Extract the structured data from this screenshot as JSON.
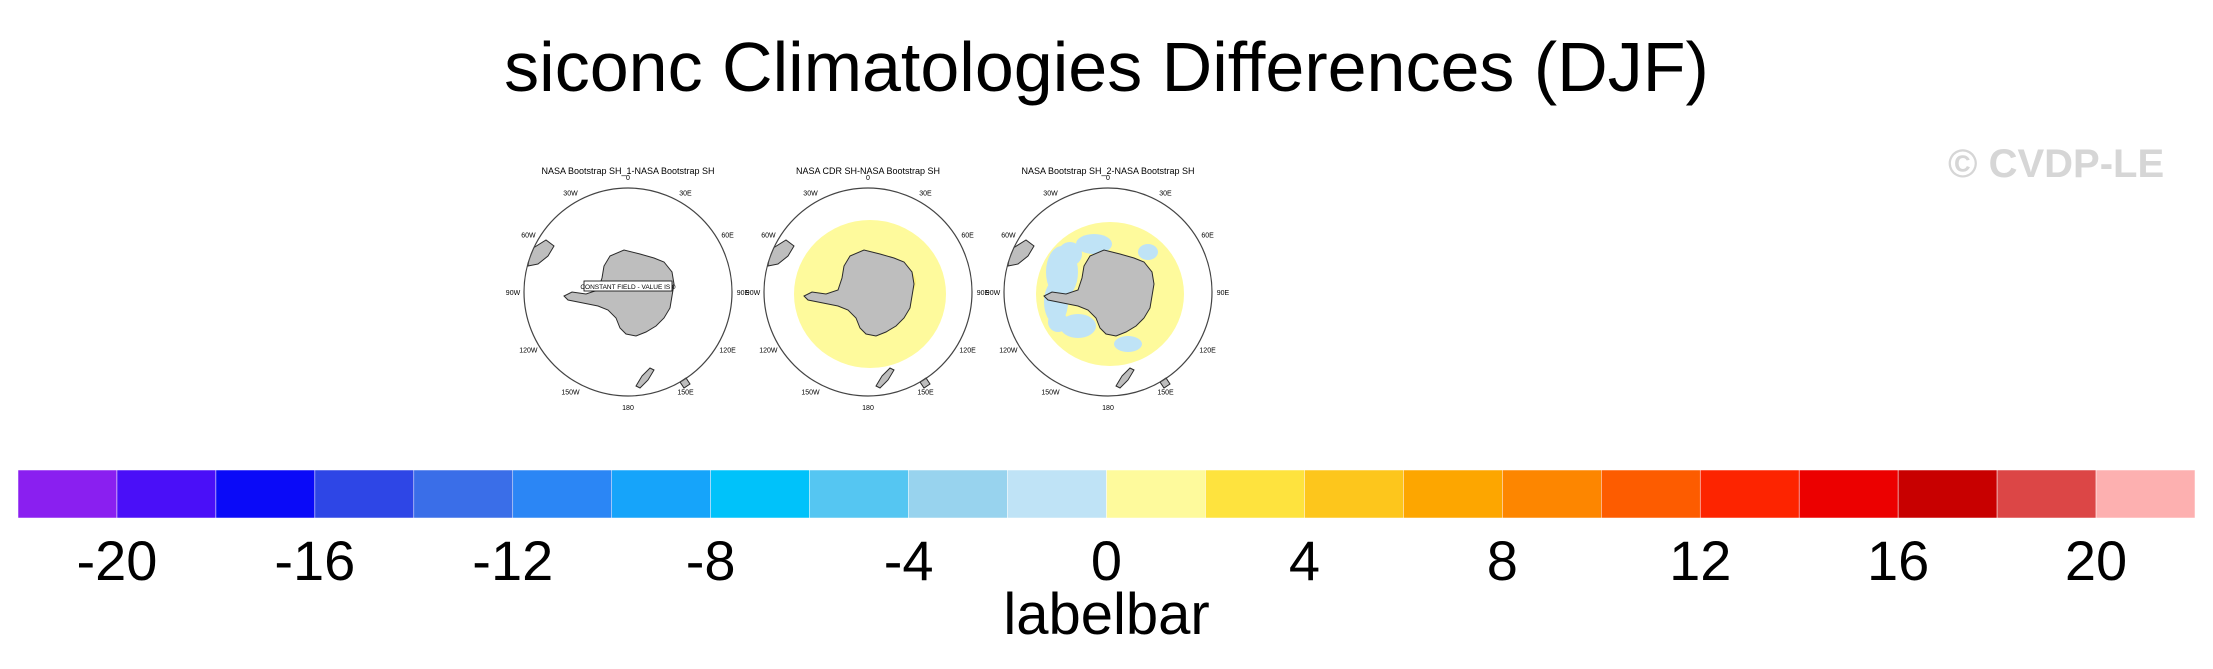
{
  "title": "siconc Climatologies Differences (DJF)",
  "watermark": "© CVDP-LE",
  "chart_data": {
    "type": "heatmap",
    "projection": "south-polar-stereographic",
    "panels": [
      {
        "title": "NASA Bootstrap SH_1-NASA Bootstrap SH",
        "annotation": "CONSTANT FIELD - VALUE IS 0",
        "field": "none",
        "lon_labels": [
          "0",
          "30E",
          "60E",
          "90E",
          "120E",
          "150E",
          "180",
          "150W",
          "120W",
          "90W",
          "60W",
          "30W"
        ]
      },
      {
        "title": "NASA CDR SH-NASA Bootstrap SH",
        "annotation": "",
        "field": "positive-ring",
        "lon_labels": [
          "0",
          "30E",
          "60E",
          "90E",
          "120E",
          "150E",
          "180",
          "150W",
          "120W",
          "90W",
          "60W",
          "30W"
        ]
      },
      {
        "title": "NASA Bootstrap SH_2-NASA Bootstrap SH",
        "annotation": "",
        "field": "mixed-ring",
        "lon_labels": [
          "0",
          "30E",
          "60E",
          "90E",
          "120E",
          "150E",
          "180",
          "150W",
          "120W",
          "90W",
          "60W",
          "30W"
        ]
      }
    ],
    "colorbar": {
      "label": "labelbar",
      "levels": [
        -22,
        -20,
        -18,
        -16,
        -14,
        -12,
        -10,
        -8,
        -6,
        -4,
        -2,
        0,
        2,
        4,
        6,
        8,
        10,
        12,
        14,
        16,
        18,
        20,
        22
      ],
      "colors": [
        "#8a1ff0",
        "#4a0ff8",
        "#0a0af8",
        "#2e46e6",
        "#3a6ee8",
        "#2b86f5",
        "#16a4fa",
        "#00c2fa",
        "#55c6f2",
        "#98d3ee",
        "#bfe3f6",
        "#fefa9c",
        "#fee33e",
        "#fdc61c",
        "#fda600",
        "#fd8600",
        "#fd5c00",
        "#fd2400",
        "#ec0000",
        "#c80000",
        "#dc4646",
        "#fdb0b0"
      ],
      "tick_labels": [
        "-20",
        "-16",
        "-12",
        "-8",
        "-4",
        "0",
        "4",
        "8",
        "12",
        "16",
        "20"
      ]
    }
  }
}
